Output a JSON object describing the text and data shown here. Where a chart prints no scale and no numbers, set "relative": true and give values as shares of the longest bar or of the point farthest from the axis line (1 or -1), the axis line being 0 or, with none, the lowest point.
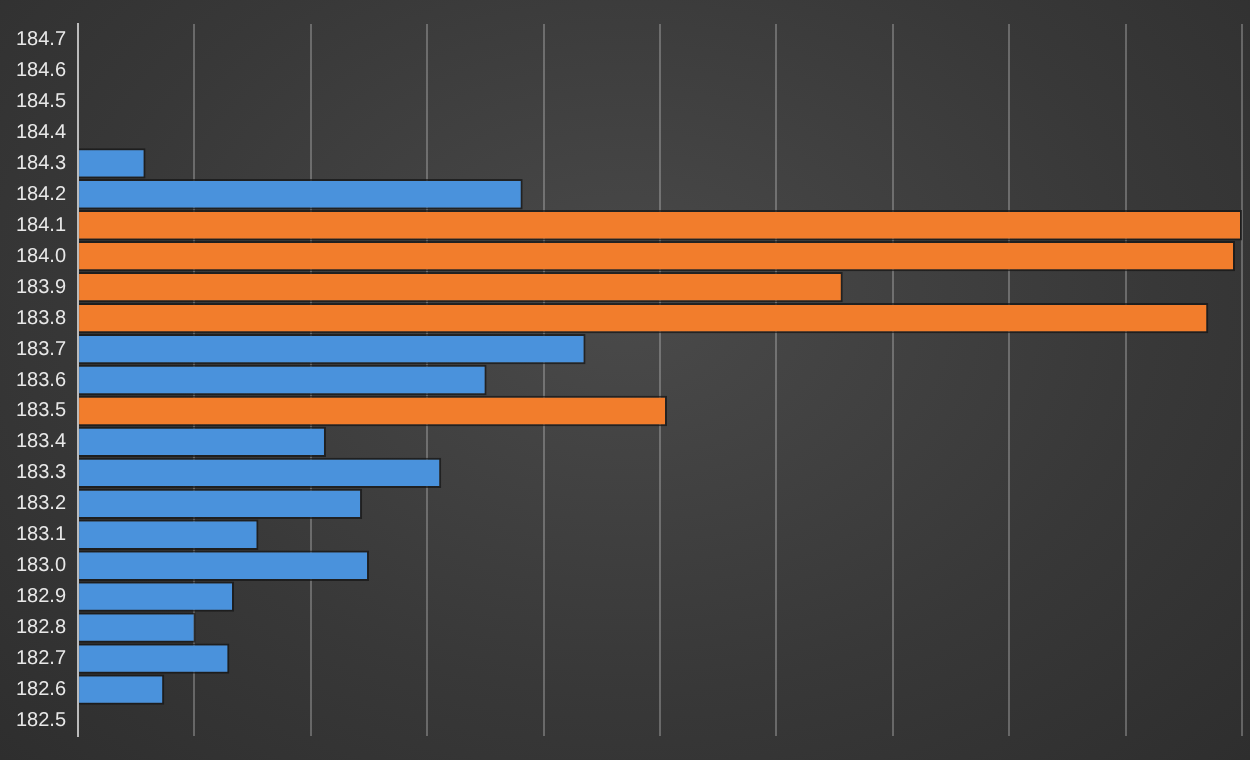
{
  "chart_data": {
    "type": "bar",
    "orientation": "horizontal",
    "relative": true,
    "grid": "x",
    "legend": false,
    "categories": [
      "184.7",
      "184.6",
      "184.5",
      "184.4",
      "184.3",
      "184.2",
      "184.1",
      "184.0",
      "183.9",
      "183.8",
      "183.7",
      "183.6",
      "183.5",
      "183.4",
      "183.3",
      "183.2",
      "183.1",
      "183.0",
      "182.9",
      "182.8",
      "182.7",
      "182.6",
      "182.5"
    ],
    "values": [
      0,
      0,
      0,
      0,
      0.058,
      0.382,
      1,
      0.994,
      0.657,
      0.971,
      0.436,
      0.351,
      0.506,
      0.213,
      0.312,
      0.244,
      0.155,
      0.25,
      0.134,
      0.101,
      0.13,
      0.074,
      0
    ],
    "colors": [
      "#4a92dc",
      "#4a92dc",
      "#4a92dc",
      "#4a92dc",
      "#4a92dc",
      "#4a92dc",
      "#f27d2c",
      "#f27d2c",
      "#f27d2c",
      "#f27d2c",
      "#4a92dc",
      "#4a92dc",
      "#f27d2c",
      "#4a92dc",
      "#4a92dc",
      "#4a92dc",
      "#4a92dc",
      "#4a92dc",
      "#4a92dc",
      "#4a92dc",
      "#4a92dc",
      "#4a92dc",
      "#4a92dc"
    ]
  }
}
